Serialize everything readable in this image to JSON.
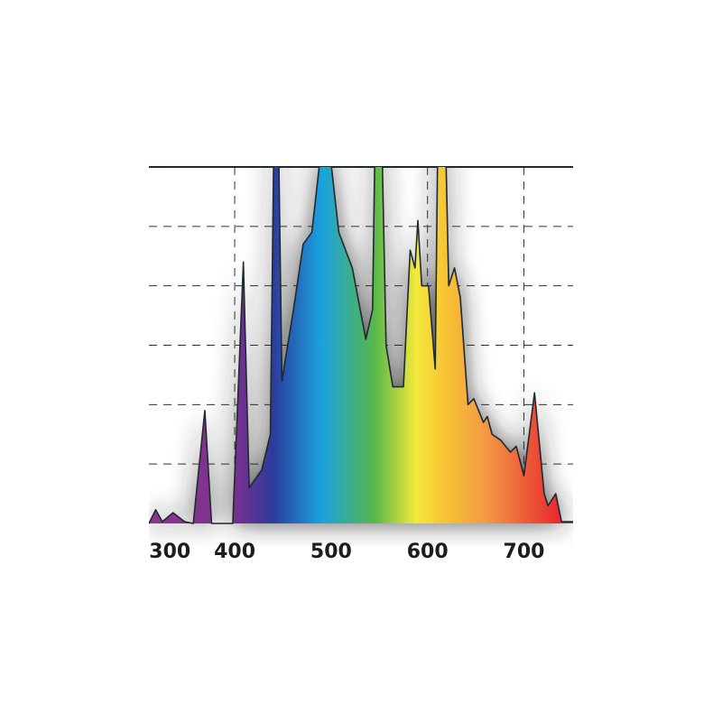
{
  "chart_data": {
    "type": "area",
    "x": [
      311,
      318,
      325,
      336,
      348,
      357,
      369,
      376,
      398,
      409,
      415,
      428,
      437,
      441,
      445,
      449,
      461,
      471,
      480,
      489,
      499,
      508,
      522,
      536,
      543,
      546,
      552,
      557,
      564,
      575,
      582,
      587,
      590,
      594,
      601,
      608,
      611,
      618,
      622,
      628,
      634,
      642,
      648,
      658,
      662,
      667,
      676,
      686,
      692,
      700,
      711,
      721,
      725,
      733,
      739,
      751
    ],
    "values": [
      0,
      0.23,
      0.03,
      0.18,
      0.03,
      0,
      1.9,
      0,
      0,
      4.4,
      0.6,
      0.9,
      1.5,
      7,
      7,
      2.4,
      3.6,
      4.7,
      4.9,
      6.2,
      6.2,
      4.9,
      4.3,
      3.1,
      3.6,
      7,
      7,
      3.0,
      2.3,
      2.3,
      4.6,
      4.3,
      5.1,
      4.0,
      4.0,
      2.6,
      7,
      7,
      4.0,
      4.3,
      3.8,
      2.0,
      2.1,
      1.7,
      1.8,
      1.5,
      1.4,
      1.2,
      1.3,
      0.8,
      2.2,
      0.5,
      0.3,
      0.5,
      0.03,
      0.03
    ],
    "xlim": [
      311,
      751
    ],
    "ylim": [
      0,
      6
    ],
    "xticks": [
      300,
      400,
      500,
      600,
      700
    ],
    "yticks": [
      1,
      2,
      3,
      4,
      5
    ],
    "show_ytick_labels": false,
    "grid": true,
    "line_color": "#1f2a2e",
    "fill_gradient": [
      {
        "at": 311,
        "color": "#8a3a8e"
      },
      {
        "at": 400,
        "color": "#7b2f8f"
      },
      {
        "at": 440,
        "color": "#2b3c9c"
      },
      {
        "at": 490,
        "color": "#1aa2de"
      },
      {
        "at": 545,
        "color": "#57b74a"
      },
      {
        "at": 588,
        "color": "#f4e93b"
      },
      {
        "at": 620,
        "color": "#f7c134"
      },
      {
        "at": 660,
        "color": "#f39a45"
      },
      {
        "at": 740,
        "color": "#e8242d"
      }
    ]
  }
}
